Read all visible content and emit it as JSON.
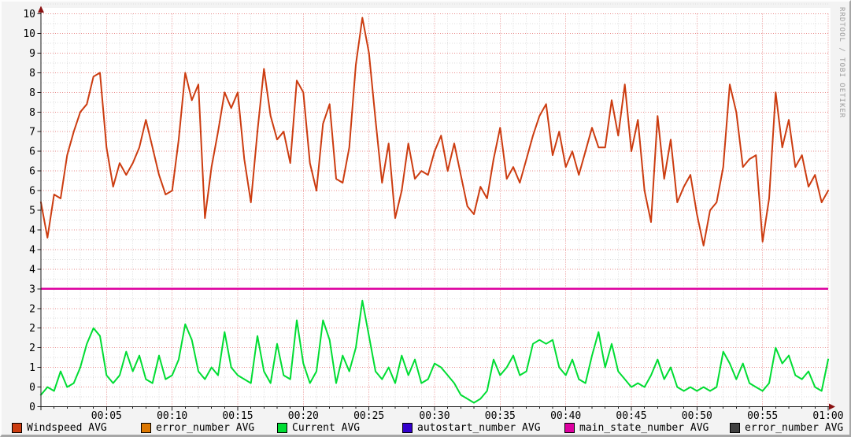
{
  "watermark": "RRDTOOL / TOBI OETIKER",
  "colors": {
    "background": "#f3f3f3",
    "plot_background": "#ffffff",
    "grid_major": "#ea8e8e",
    "grid_minor": "#dcdcdc",
    "axis": "#1a1a1a",
    "axis_arrow": "#8a1212",
    "axis_text": "#000000",
    "watermark_text": "#9b9b9b"
  },
  "legend": [
    {
      "label": "Windspeed AVG",
      "color": "#cc3c10"
    },
    {
      "label": "error_number AVG",
      "color": "#dd7700"
    },
    {
      "label": "Current AVG",
      "color": "#00dd33"
    },
    {
      "label": "autostart_number AVG",
      "color": "#3300cc"
    },
    {
      "label": "main_state_number AVG",
      "color": "#dd00a0"
    },
    {
      "label": "error_number AVG",
      "color": "#414141"
    }
  ],
  "chart_data": {
    "type": "line",
    "title": "",
    "x_axis": {
      "unit": "time hh:mm",
      "range_min": [
        0,
        60
      ],
      "tick_step_min": 5,
      "minor_step_min": 1,
      "tick_labels": [
        "00:05",
        "00:10",
        "00:15",
        "00:20",
        "00:25",
        "00:30",
        "00:35",
        "00:40",
        "00:45",
        "00:50",
        "00:55",
        "01:00"
      ]
    },
    "y_axis": {
      "min": 0,
      "max": 10,
      "tick_step": 0.5,
      "minor_step": 0.25,
      "tick_labels_top_to_bottom": [
        "10",
        "10",
        "9",
        "8",
        "8",
        "8",
        "7",
        "6",
        "6",
        "6",
        "5",
        "4",
        "4",
        "4",
        "3",
        "2",
        "2",
        "2",
        "1",
        "0",
        "0"
      ]
    },
    "grid": {
      "horizontal": "dotted",
      "vertical": "dotted",
      "legend_position": "bottom"
    },
    "sample_step_min": 0.5,
    "series": [
      {
        "name": "Windspeed AVG",
        "color": "#cc3c10",
        "style": "line",
        "width": 2,
        "values": [
          5.2,
          4.3,
          5.4,
          5.3,
          6.4,
          7.0,
          7.5,
          7.7,
          8.4,
          8.5,
          6.6,
          5.6,
          6.2,
          5.9,
          6.2,
          6.6,
          7.3,
          6.6,
          5.9,
          5.4,
          5.5,
          6.8,
          8.5,
          7.8,
          8.2,
          4.8,
          6.1,
          7.0,
          8.0,
          7.6,
          8.0,
          6.3,
          5.2,
          7.0,
          8.6,
          7.4,
          6.8,
          7.0,
          6.2,
          8.3,
          8.0,
          6.2,
          5.5,
          7.2,
          7.7,
          5.8,
          5.7,
          6.6,
          8.7,
          9.9,
          9.0,
          7.3,
          5.7,
          6.7,
          4.8,
          5.5,
          6.7,
          5.8,
          6.0,
          5.9,
          6.5,
          6.9,
          6.0,
          6.7,
          5.9,
          5.1,
          4.9,
          5.6,
          5.3,
          6.3,
          7.1,
          5.8,
          6.1,
          5.7,
          6.3,
          6.9,
          7.4,
          7.7,
          6.4,
          7.0,
          6.1,
          6.5,
          5.9,
          6.5,
          7.1,
          6.6,
          6.6,
          7.8,
          6.9,
          8.2,
          6.5,
          7.3,
          5.5,
          4.7,
          7.4,
          5.8,
          6.8,
          5.2,
          5.6,
          5.9,
          4.9,
          4.1,
          5.0,
          5.2,
          6.1,
          8.2,
          7.5,
          6.1,
          6.3,
          6.4,
          4.2,
          5.3,
          8.0,
          6.6,
          7.3,
          6.1,
          6.4,
          5.6,
          5.9,
          5.2,
          5.5
        ]
      },
      {
        "name": "Current AVG",
        "color": "#00dd33",
        "style": "line",
        "width": 2,
        "values": [
          0.3,
          0.5,
          0.4,
          0.9,
          0.5,
          0.6,
          1.0,
          1.6,
          2.0,
          1.8,
          0.8,
          0.6,
          0.8,
          1.4,
          0.9,
          1.3,
          0.7,
          0.6,
          1.3,
          0.7,
          0.8,
          1.2,
          2.1,
          1.7,
          0.9,
          0.7,
          1.0,
          0.8,
          1.9,
          1.0,
          0.8,
          0.7,
          0.6,
          1.8,
          0.9,
          0.6,
          1.6,
          0.8,
          0.7,
          2.2,
          1.1,
          0.6,
          0.9,
          2.2,
          1.7,
          0.6,
          1.3,
          0.9,
          1.5,
          2.7,
          1.8,
          0.9,
          0.7,
          1.0,
          0.6,
          1.3,
          0.8,
          1.2,
          0.6,
          0.7,
          1.1,
          1.0,
          0.8,
          0.6,
          0.3,
          0.2,
          0.1,
          0.2,
          0.4,
          1.2,
          0.8,
          1.0,
          1.3,
          0.8,
          0.9,
          1.6,
          1.7,
          1.6,
          1.7,
          1.0,
          0.8,
          1.2,
          0.7,
          0.6,
          1.3,
          1.9,
          1.0,
          1.6,
          0.9,
          0.7,
          0.5,
          0.6,
          0.5,
          0.8,
          1.2,
          0.7,
          1.0,
          0.5,
          0.4,
          0.5,
          0.4,
          0.5,
          0.4,
          0.5,
          1.4,
          1.1,
          0.7,
          1.1,
          0.6,
          0.5,
          0.4,
          0.6,
          1.5,
          1.1,
          1.3,
          0.8,
          0.7,
          0.9,
          0.5,
          0.4,
          1.2
        ]
      },
      {
        "name": "main_state_number AVG",
        "color": "#dd00a0",
        "style": "hline",
        "width": 2.5,
        "value": 3
      },
      {
        "name": "error_number AVG",
        "color": "#dd7700",
        "style": "line",
        "values": [],
        "visible_line": false
      },
      {
        "name": "autostart_number AVG",
        "color": "#3300cc",
        "style": "line",
        "values": [],
        "visible_line": false
      },
      {
        "name": "error_number AVG",
        "color": "#414141",
        "style": "line",
        "values": [],
        "visible_line": false
      }
    ]
  }
}
